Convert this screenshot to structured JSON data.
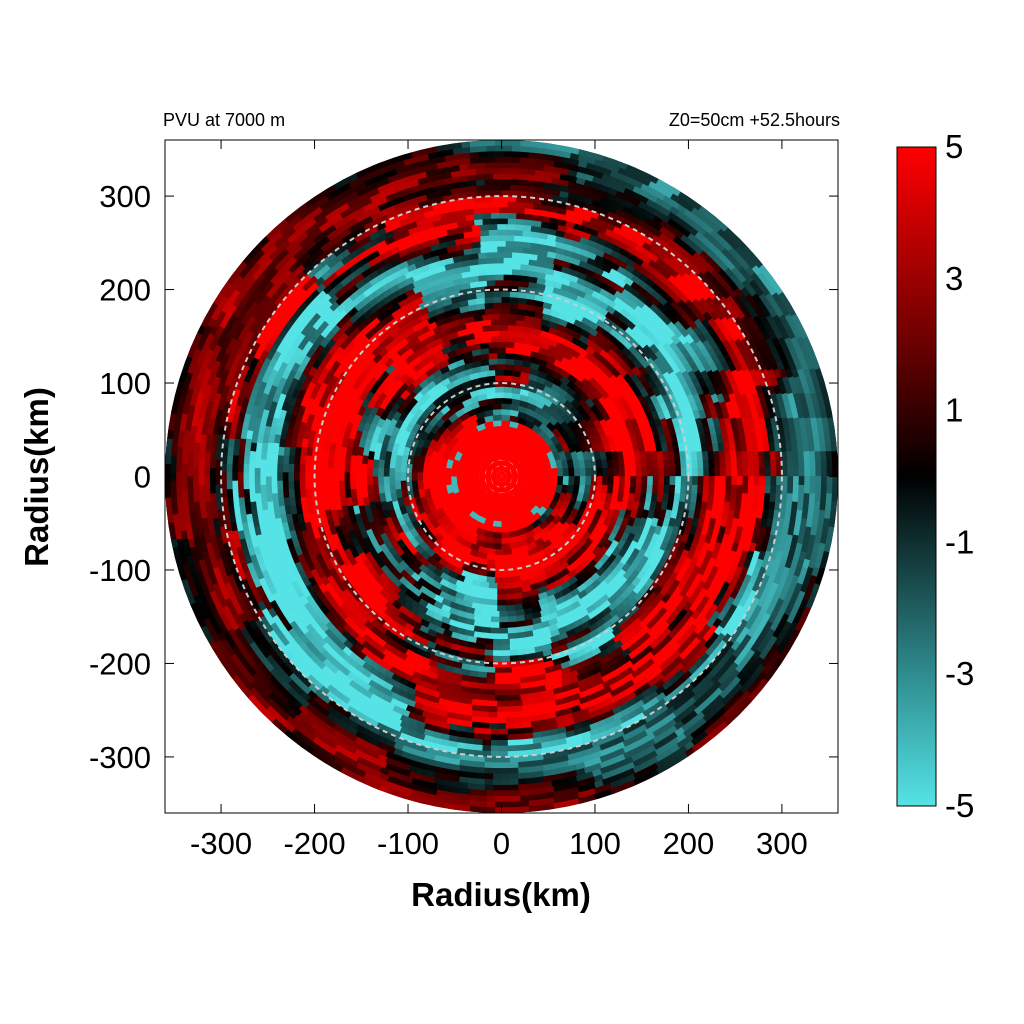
{
  "chart_data": {
    "type": "heatmap",
    "title_left": "PVU at  7000 m",
    "title_right": "Z0=50cm  +52.5hours",
    "xlabel": "Radius(km)",
    "ylabel": "Radius(km)",
    "xlim": [
      -360,
      360
    ],
    "ylim": [
      -360,
      360
    ],
    "x_ticks": [
      -300,
      -200,
      -100,
      0,
      100,
      200,
      300
    ],
    "y_ticks": [
      300,
      200,
      100,
      0,
      -100,
      -200,
      -300
    ],
    "domain_radius_km": 360,
    "reference_circles_km": [
      100,
      200,
      300
    ],
    "colorbar": {
      "min": -5,
      "max": 5,
      "ticks": [
        5,
        3,
        1,
        -1,
        -3,
        -5
      ],
      "color_stops": [
        {
          "value": -5,
          "color": "#55e3e6"
        },
        {
          "value": -3,
          "color": "#2f8c8f"
        },
        {
          "value": 0,
          "color": "#000000"
        },
        {
          "value": 2,
          "color": "#6a0000"
        },
        {
          "value": 5,
          "color": "#ff0000"
        }
      ]
    },
    "field_description": "Potential vorticity (PVU) on a polar grid; core of strong positive values (≥5) within ~60 km radius, alternating spiral bands of positive and negative values outward"
  }
}
